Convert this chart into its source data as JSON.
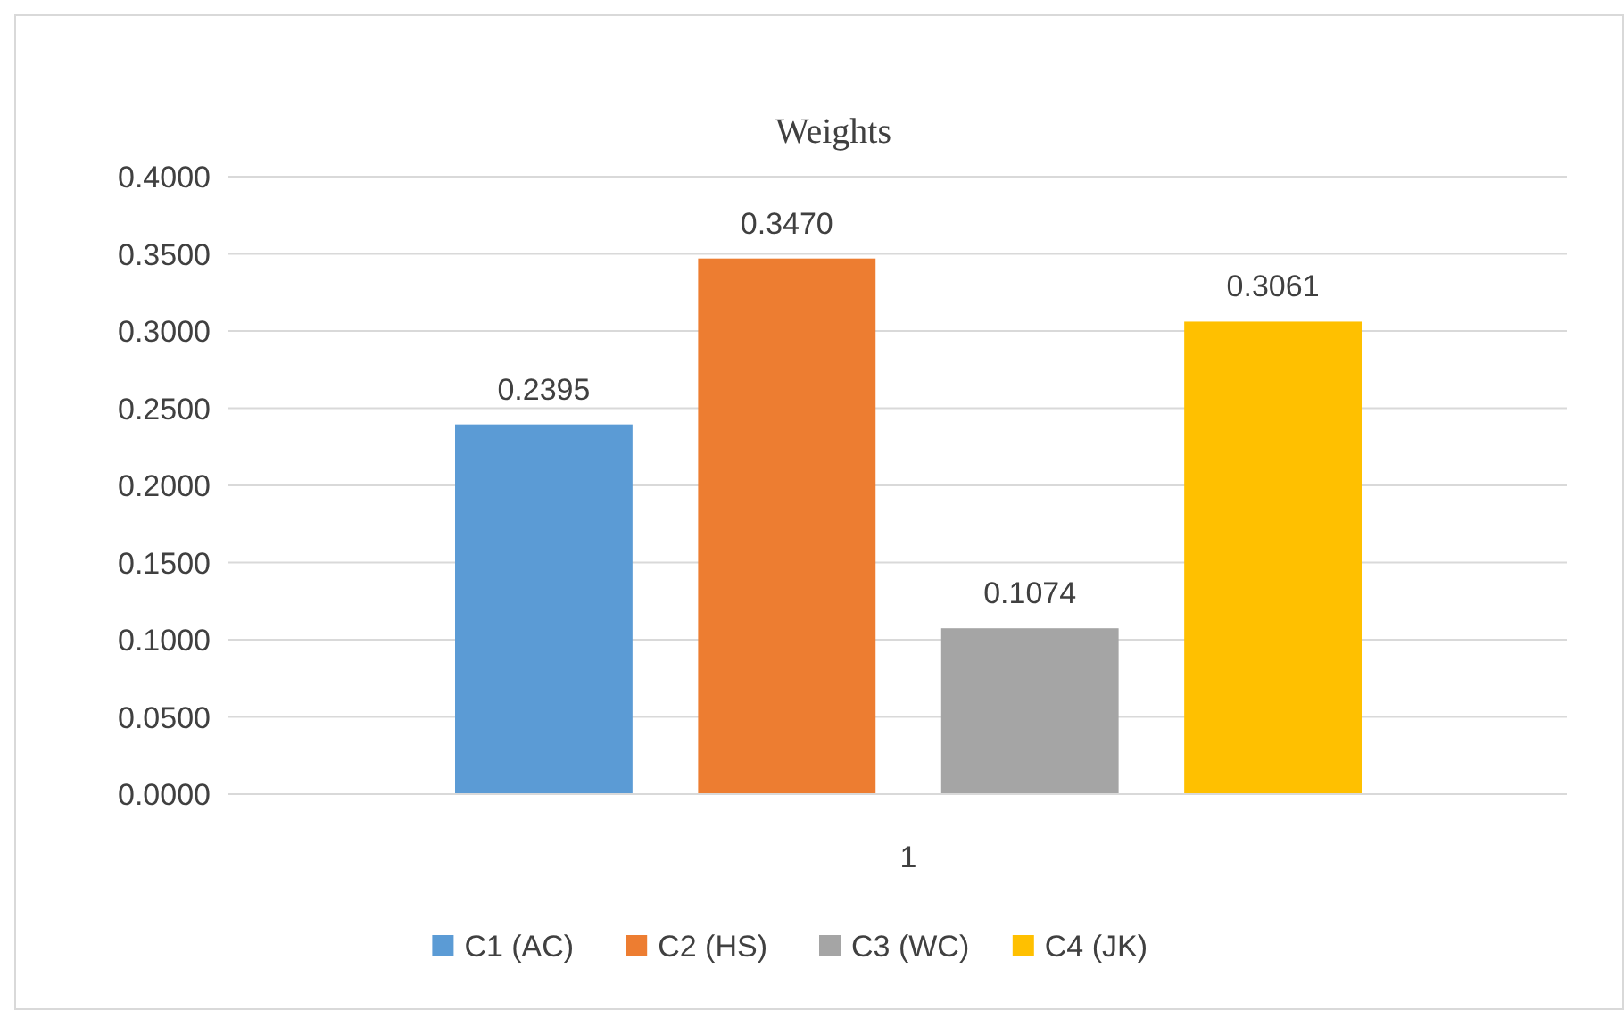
{
  "chart_data": {
    "type": "bar",
    "title": "Weights",
    "categories": [
      "1"
    ],
    "series": [
      {
        "name": "C1 (AC)",
        "color": "#5b9bd5",
        "values": [
          0.2395
        ]
      },
      {
        "name": "C2 (HS)",
        "color": "#ed7d31",
        "values": [
          0.347
        ]
      },
      {
        "name": "C3 (WC)",
        "color": "#a5a5a5",
        "values": [
          0.1074
        ]
      },
      {
        "name": "C4 (JK)",
        "color": "#ffc000",
        "values": [
          0.3061
        ]
      }
    ],
    "ylim": [
      0,
      0.4
    ],
    "yticks": [
      {
        "value": 0,
        "label": "0.0000"
      },
      {
        "value": 0.05,
        "label": "0.0500"
      },
      {
        "value": 0.1,
        "label": "0.1000"
      },
      {
        "value": 0.15,
        "label": "0.1500"
      },
      {
        "value": 0.2,
        "label": "0.2000"
      },
      {
        "value": 0.25,
        "label": "0.2500"
      },
      {
        "value": 0.3,
        "label": "0.3000"
      },
      {
        "value": 0.35,
        "label": "0.3500"
      },
      {
        "value": 0.4,
        "label": "0.4000"
      }
    ],
    "value_labels": [
      "0.2395",
      "0.3470",
      "0.1074",
      "0.3061"
    ],
    "grid": "y",
    "legend": "bottom"
  }
}
